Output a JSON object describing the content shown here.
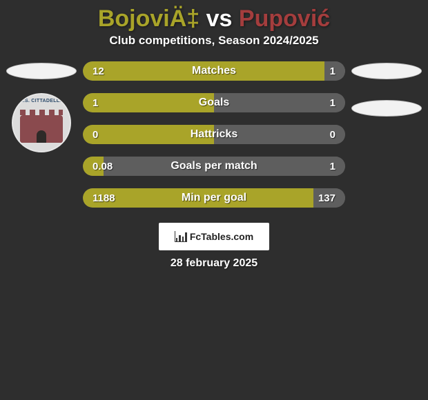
{
  "header": {
    "player1_name": "BojoviÄ‡",
    "vs": "vs",
    "player2_name": "Pupović",
    "player1_color": "#a9a429",
    "player2_color": "#a43d3d",
    "subtitle": "Club competitions, Season 2024/2025"
  },
  "bars": {
    "left_color": "#a9a429",
    "right_color": "#5e5e5e",
    "track_color": "#606060",
    "text_color": "#ffffff",
    "items": [
      {
        "label": "Matches",
        "left_val": "12",
        "right_val": "1",
        "left_pct": 92,
        "right_pct": 8
      },
      {
        "label": "Goals",
        "left_val": "1",
        "right_val": "1",
        "left_pct": 50,
        "right_pct": 50
      },
      {
        "label": "Hattricks",
        "left_val": "0",
        "right_val": "0",
        "left_pct": 50,
        "right_pct": 50
      },
      {
        "label": "Goals per match",
        "left_val": "0.08",
        "right_val": "1",
        "left_pct": 8,
        "right_pct": 92
      },
      {
        "label": "Min per goal",
        "left_val": "1188",
        "right_val": "137",
        "left_pct": 88,
        "right_pct": 12
      }
    ]
  },
  "badge": {
    "text": "A.S. CITTADELLA",
    "base_color": "#dcdcdc",
    "castle_color": "#8a4a4e",
    "text_color": "#2b4a6a"
  },
  "branding": {
    "name": "FcTables.com"
  },
  "footer": {
    "date": "28 february 2025"
  }
}
